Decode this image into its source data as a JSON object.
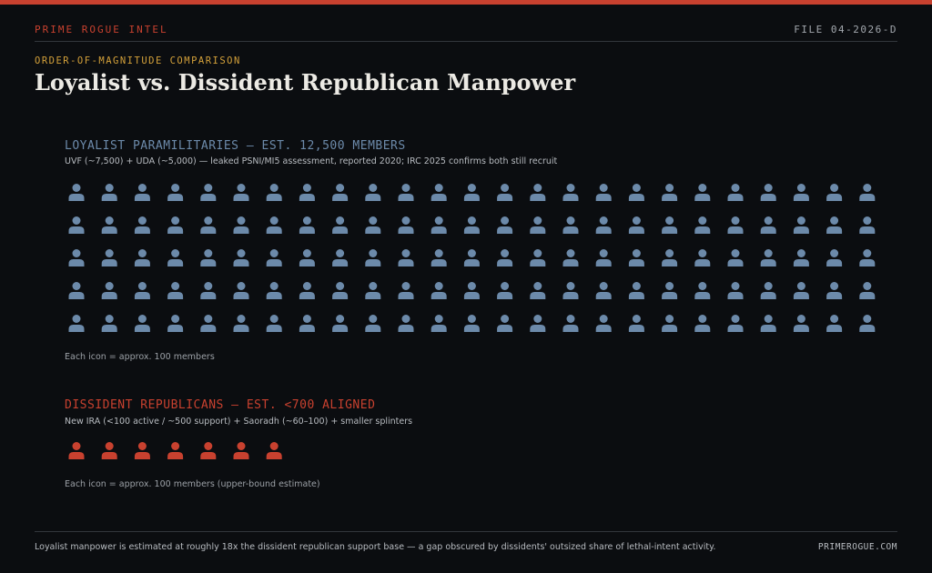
{
  "header": {
    "brand": "PRIME ROGUE INTEL",
    "file_id": "FILE 04-2026-D",
    "kicker": "ORDER-OF-MAGNITUDE COMPARISON",
    "title": "Loyalist vs. Dissident Republican Manpower"
  },
  "chart_data": {
    "type": "pictogram",
    "unit": "Each icon = approx. 100 members",
    "series": [
      {
        "name": "LOYALIST PARAMILITARIES — EST. 12,500 MEMBERS",
        "subtitle": "UVF (~7,500) + UDA (~5,000) — leaked PSNI/MI5 assessment, reported 2020; IRC 2025 confirms both still recruit",
        "value": 12500,
        "icons": 125,
        "color": "#6c8aaa",
        "note": "Each icon = approx. 100 members"
      },
      {
        "name": "DISSIDENT REPUBLICANS — EST. <700 ALIGNED",
        "subtitle": "New IRA (<100 active / ~500 support) + Saoradh (~60–100) + smaller splinters",
        "value": 700,
        "icons": 7,
        "color": "#c8412f",
        "note": "Each icon = approx. 100 members (upper-bound estimate)"
      }
    ]
  },
  "footer": {
    "note": "Loyalist manpower is estimated at roughly 18x the dissident republican support base — a gap obscured by dissidents' outsized share of lethal-intent activity.",
    "site": "PRIMEROGUE.COM"
  }
}
